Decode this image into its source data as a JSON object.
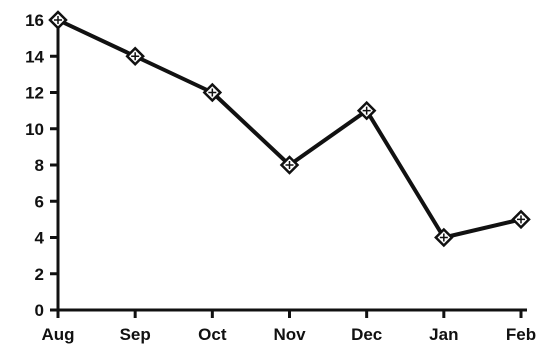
{
  "chart_data": {
    "type": "line",
    "categories": [
      "Aug",
      "Sep",
      "Oct",
      "Nov",
      "Dec",
      "Jan",
      "Feb"
    ],
    "values": [
      16,
      14,
      12,
      8,
      11,
      4,
      5
    ],
    "ylim": [
      0,
      16
    ],
    "yticks": [
      "0",
      "2",
      "4",
      "6",
      "8",
      "10",
      "12",
      "14",
      "16"
    ],
    "grid": false,
    "marker": "diamond",
    "colors": {
      "line": "#111111",
      "marker_fill": "#ffffff",
      "axis": "#111111"
    }
  }
}
